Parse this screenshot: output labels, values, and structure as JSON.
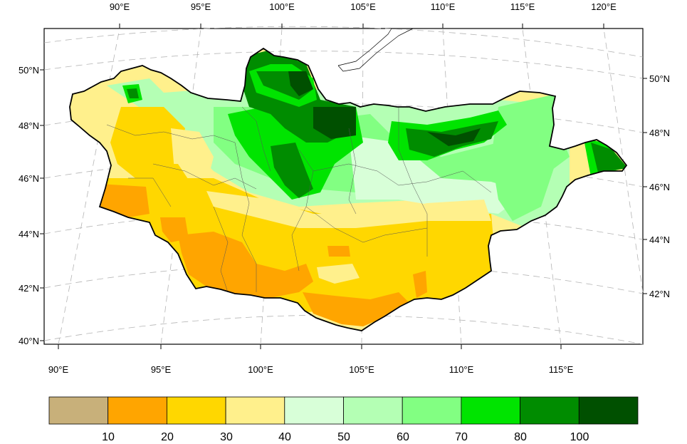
{
  "map": {
    "lon_labels_top": [
      "90°E",
      "95°E",
      "100°E",
      "105°E",
      "110°E",
      "115°E",
      "120°E"
    ],
    "lon_labels_bottom": [
      "90°E",
      "95°E",
      "100°E",
      "105°E",
      "110°E",
      "115°E"
    ],
    "lat_labels_left": [
      "50°N",
      "48°N",
      "46°N",
      "44°N",
      "42°N",
      "40°N"
    ],
    "lat_labels_right": [
      "50°N",
      "48°N",
      "46°N",
      "44°N",
      "42°N"
    ]
  },
  "colorbar": {
    "colors": [
      "#c8b07a",
      "#ffa500",
      "#ffd700",
      "#fff08c",
      "#d8ffd8",
      "#b4ffb4",
      "#82ff82",
      "#00e400",
      "#008c00",
      "#005000"
    ],
    "tick_labels": [
      "10",
      "20",
      "30",
      "40",
      "50",
      "60",
      "70",
      "80",
      "100"
    ]
  },
  "palette": {
    "border": "#000000",
    "graticule": "#b4b4b4",
    "province": "#555555"
  }
}
